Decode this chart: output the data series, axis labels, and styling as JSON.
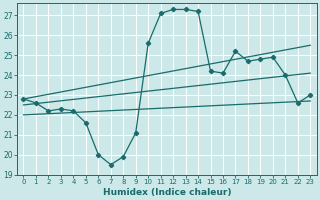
{
  "xlabel": "Humidex (Indice chaleur)",
  "background_color": "#cce8e8",
  "grid_color": "#ffffff",
  "line_color": "#1a6b6b",
  "xlim": [
    -0.5,
    23.5
  ],
  "ylim": [
    19,
    27.6
  ],
  "yticks": [
    19,
    20,
    21,
    22,
    23,
    24,
    25,
    26,
    27
  ],
  "xticks": [
    0,
    1,
    2,
    3,
    4,
    5,
    6,
    7,
    8,
    9,
    10,
    11,
    12,
    13,
    14,
    15,
    16,
    17,
    18,
    19,
    20,
    21,
    22,
    23
  ],
  "main_x": [
    0,
    1,
    2,
    3,
    4,
    5,
    6,
    7,
    8,
    9,
    10,
    11,
    12,
    13,
    14,
    15,
    16,
    17,
    18,
    19,
    20,
    21,
    22,
    23
  ],
  "main_y": [
    22.8,
    22.6,
    22.2,
    22.3,
    22.2,
    21.6,
    20.0,
    19.5,
    19.9,
    21.1,
    25.6,
    27.1,
    27.3,
    27.3,
    27.2,
    24.2,
    24.1,
    25.2,
    24.7,
    24.8,
    24.9,
    24.0,
    22.6,
    23.0
  ],
  "trend1_x": [
    0,
    23
  ],
  "trend1_y": [
    22.8,
    25.5
  ],
  "trend2_x": [
    0,
    23
  ],
  "trend2_y": [
    22.5,
    24.1
  ],
  "trend3_x": [
    0,
    23
  ],
  "trend3_y": [
    22.0,
    22.7
  ]
}
